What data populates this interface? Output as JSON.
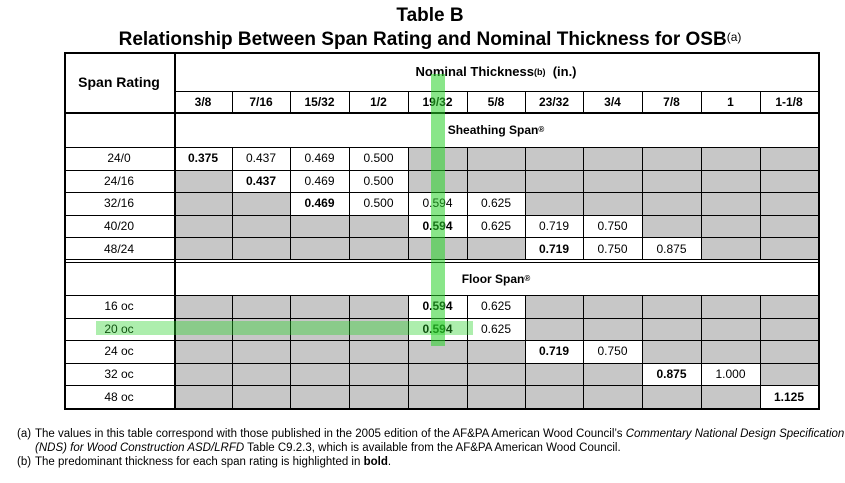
{
  "title": "Table B",
  "subtitle": "Relationship Between Span Rating and Nominal Thickness for OSB",
  "subtitle_note": "(a)",
  "span_rating_header": "Span Rating",
  "nominal_thickness_header": "Nominal Thickness",
  "nominal_thickness_note": "(b)",
  "nominal_thickness_unit": "(in.)",
  "thickness_columns": [
    "3/8",
    "7/16",
    "15/32",
    "1/2",
    "19/32",
    "5/8",
    "23/32",
    "3/4",
    "7/8",
    "1",
    "1-1/8"
  ],
  "sections": [
    {
      "label": "Sheathing Span",
      "mark": "®",
      "rows": [
        {
          "rating": "24/0",
          "cells": [
            "0.375",
            "0.437",
            "0.469",
            "0.500",
            null,
            null,
            null,
            null,
            null,
            null,
            null
          ],
          "bold": 0
        },
        {
          "rating": "24/16",
          "cells": [
            null,
            "0.437",
            "0.469",
            "0.500",
            null,
            null,
            null,
            null,
            null,
            null,
            null
          ],
          "bold": 1
        },
        {
          "rating": "32/16",
          "cells": [
            null,
            null,
            "0.469",
            "0.500",
            "0.594",
            "0.625",
            null,
            null,
            null,
            null,
            null
          ],
          "bold": 2
        },
        {
          "rating": "40/20",
          "cells": [
            null,
            null,
            null,
            null,
            "0.594",
            "0.625",
            "0.719",
            "0.750",
            null,
            null,
            null
          ],
          "bold": 4
        },
        {
          "rating": "48/24",
          "cells": [
            null,
            null,
            null,
            null,
            null,
            null,
            "0.719",
            "0.750",
            "0.875",
            null,
            null
          ],
          "bold": 6
        }
      ]
    },
    {
      "label": "Floor Span",
      "mark": "®",
      "rows": [
        {
          "rating": "16 oc",
          "cells": [
            null,
            null,
            null,
            null,
            "0.594",
            "0.625",
            null,
            null,
            null,
            null,
            null
          ],
          "bold": 4
        },
        {
          "rating": "20 oc",
          "cells": [
            null,
            null,
            null,
            null,
            "0.594",
            "0.625",
            null,
            null,
            null,
            null,
            null
          ],
          "bold": 4
        },
        {
          "rating": "24 oc",
          "cells": [
            null,
            null,
            null,
            null,
            null,
            null,
            "0.719",
            "0.750",
            null,
            null,
            null
          ],
          "bold": 6
        },
        {
          "rating": "32 oc",
          "cells": [
            null,
            null,
            null,
            null,
            null,
            null,
            null,
            null,
            "0.875",
            "1.000",
            null
          ],
          "bold": 8
        },
        {
          "rating": "48 oc",
          "cells": [
            null,
            null,
            null,
            null,
            null,
            null,
            null,
            null,
            null,
            null,
            "1.125"
          ],
          "bold": 10
        }
      ]
    }
  ],
  "footnotes": {
    "a_label": "(a)",
    "a_text_1": "The values in this table correspond with those published in the 2005 edition of the AF&PA American Wood Council’s ",
    "a_italic": "Commentary National Design Specification (NDS) for Wood Construction ASD/LRFD",
    "a_text_2": " Table C9.2.3, which is available from the AF&PA American Wood Council.",
    "b_label": "(b)",
    "b_text_1": "The predominant thickness for each span rating is highlighted in ",
    "b_bold": "bold",
    "b_text_2": "."
  },
  "colors": {
    "gray_cell": "#c7c7c7",
    "highlight": "#28d228"
  }
}
